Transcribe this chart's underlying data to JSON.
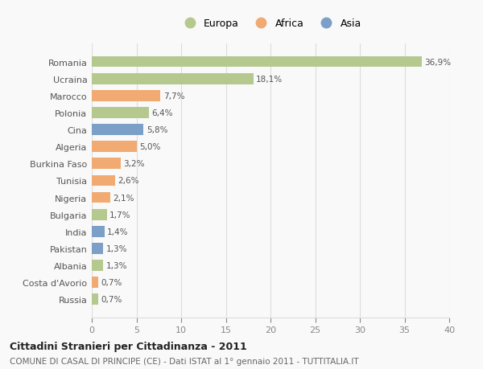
{
  "categories": [
    "Romania",
    "Ucraina",
    "Marocco",
    "Polonia",
    "Cina",
    "Algeria",
    "Burkina Faso",
    "Tunisia",
    "Nigeria",
    "Bulgaria",
    "India",
    "Pakistan",
    "Albania",
    "Costa d'Avorio",
    "Russia"
  ],
  "values": [
    36.9,
    18.1,
    7.7,
    6.4,
    5.8,
    5.0,
    3.2,
    2.6,
    2.1,
    1.7,
    1.4,
    1.3,
    1.3,
    0.7,
    0.7
  ],
  "labels": [
    "36,9%",
    "18,1%",
    "7,7%",
    "6,4%",
    "5,8%",
    "5,0%",
    "3,2%",
    "2,6%",
    "2,1%",
    "1,7%",
    "1,4%",
    "1,3%",
    "1,3%",
    "0,7%",
    "0,7%"
  ],
  "continent": [
    "Europa",
    "Europa",
    "Africa",
    "Europa",
    "Asia",
    "Africa",
    "Africa",
    "Africa",
    "Africa",
    "Europa",
    "Asia",
    "Asia",
    "Europa",
    "Africa",
    "Europa"
  ],
  "colors": {
    "Europa": "#b5c98e",
    "Africa": "#f0aa72",
    "Asia": "#7b9fc7"
  },
  "legend_order": [
    "Europa",
    "Africa",
    "Asia"
  ],
  "legend_colors": [
    "#b5c98e",
    "#f0aa72",
    "#7b9fc7"
  ],
  "legend_labels": [
    "Europa",
    "Africa",
    "Asia"
  ],
  "title": "Cittadini Stranieri per Cittadinanza - 2011",
  "subtitle": "COMUNE DI CASAL DI PRINCIPE (CE) - Dati ISTAT al 1° gennaio 2011 - TUTTITALIA.IT",
  "xlim": [
    0,
    40
  ],
  "xticks": [
    0,
    5,
    10,
    15,
    20,
    25,
    30,
    35,
    40
  ],
  "background_color": "#f9f9f9",
  "grid_color": "#dddddd",
  "bar_height": 0.65
}
